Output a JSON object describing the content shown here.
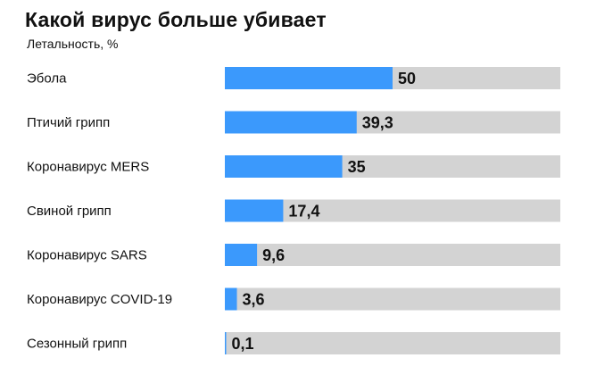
{
  "header": {
    "title": "Какой вирус больше убивает",
    "subtitle": "Летальность, %"
  },
  "colors": {
    "bar": "#3b99fc",
    "track": "#d3d3d3",
    "text": "#111111"
  },
  "chart_data": {
    "type": "bar",
    "orientation": "horizontal",
    "title": "Какой вирус больше убивает",
    "subtitle": "Летальность, %",
    "categories": [
      "Эбола",
      "Птичий грипп",
      "Коронавирус MERS",
      "Свиной грипп",
      "Коронавирус SARS",
      "Коронавирус COVID-19",
      "Сезонный грипп"
    ],
    "values": [
      50,
      39.3,
      35,
      17.4,
      9.6,
      3.6,
      0.1
    ],
    "value_labels": [
      "50",
      "39,3",
      "35",
      "17,4",
      "9,6",
      "3,6",
      "0,1"
    ],
    "xlim": [
      0,
      100
    ],
    "grid": false,
    "legend": "none"
  }
}
